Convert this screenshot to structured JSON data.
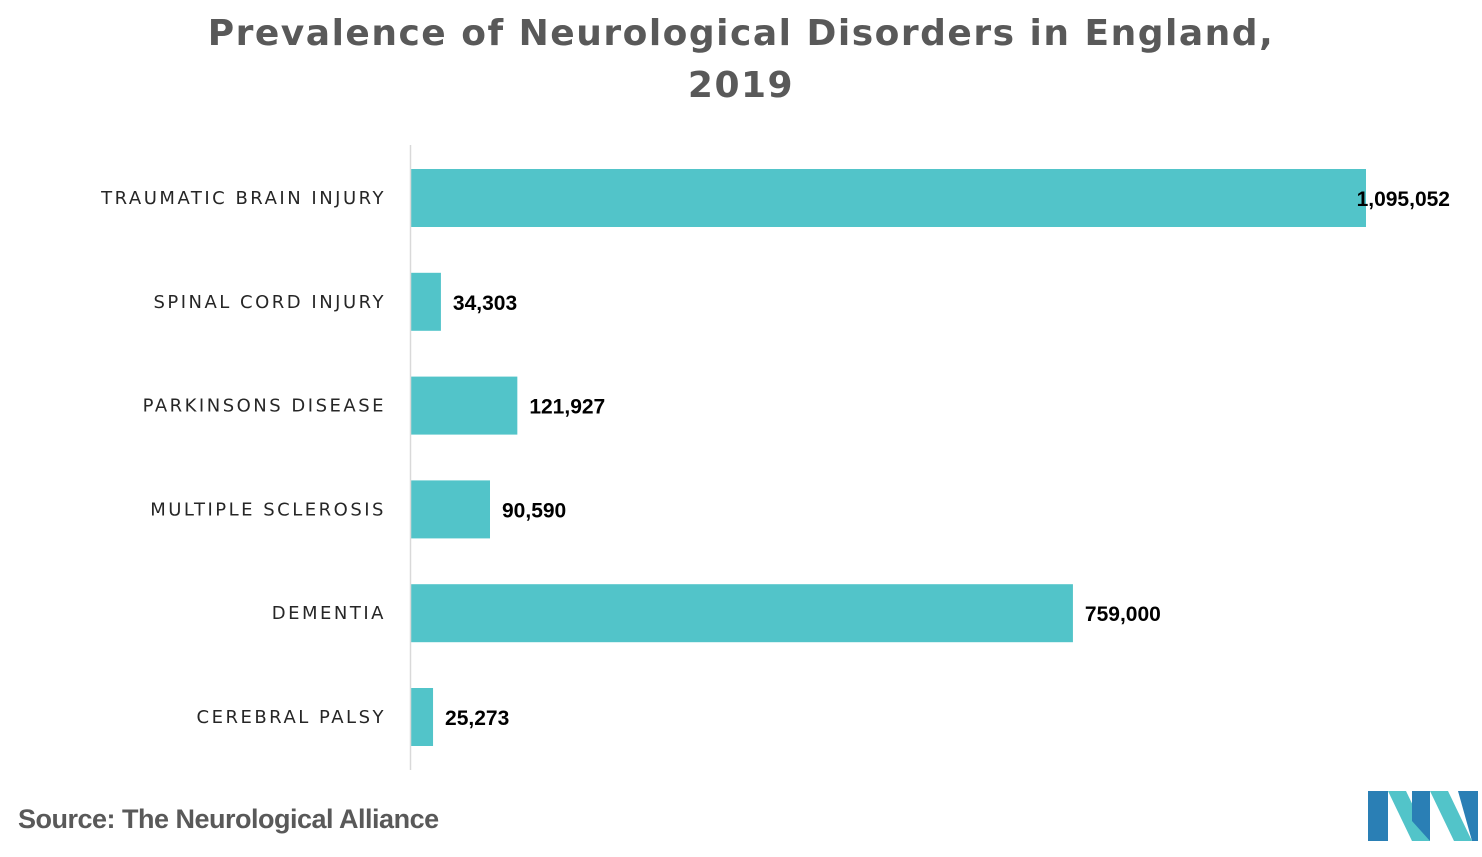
{
  "chart_data": {
    "type": "bar",
    "orientation": "horizontal",
    "title_lines": [
      "Prevalence of Neurological Disorders in England,",
      "2019"
    ],
    "categories": [
      "TRAUMATIC BRAIN INJURY",
      "SPINAL CORD INJURY",
      "PARKINSONS DISEASE",
      "MULTIPLE SCLEROSIS",
      "DEMENTIA",
      "CEREBRAL PALSY"
    ],
    "values": [
      1095052,
      34303,
      121927,
      90590,
      759000,
      25273
    ],
    "value_labels": [
      "1,095,052",
      "34,303",
      "121,927",
      "90,590",
      "759,000",
      "25,273"
    ],
    "xlim": [
      0,
      1095052
    ],
    "grid": false,
    "legend": "none",
    "bar_color": "#52C4C9",
    "axis_color": "#D9D9D9"
  },
  "source": "Source: The Neurological Alliance",
  "logo": {
    "icon": "mordor-intelligence-logo",
    "colors": [
      "#2A7FB5",
      "#52C4C9"
    ]
  }
}
